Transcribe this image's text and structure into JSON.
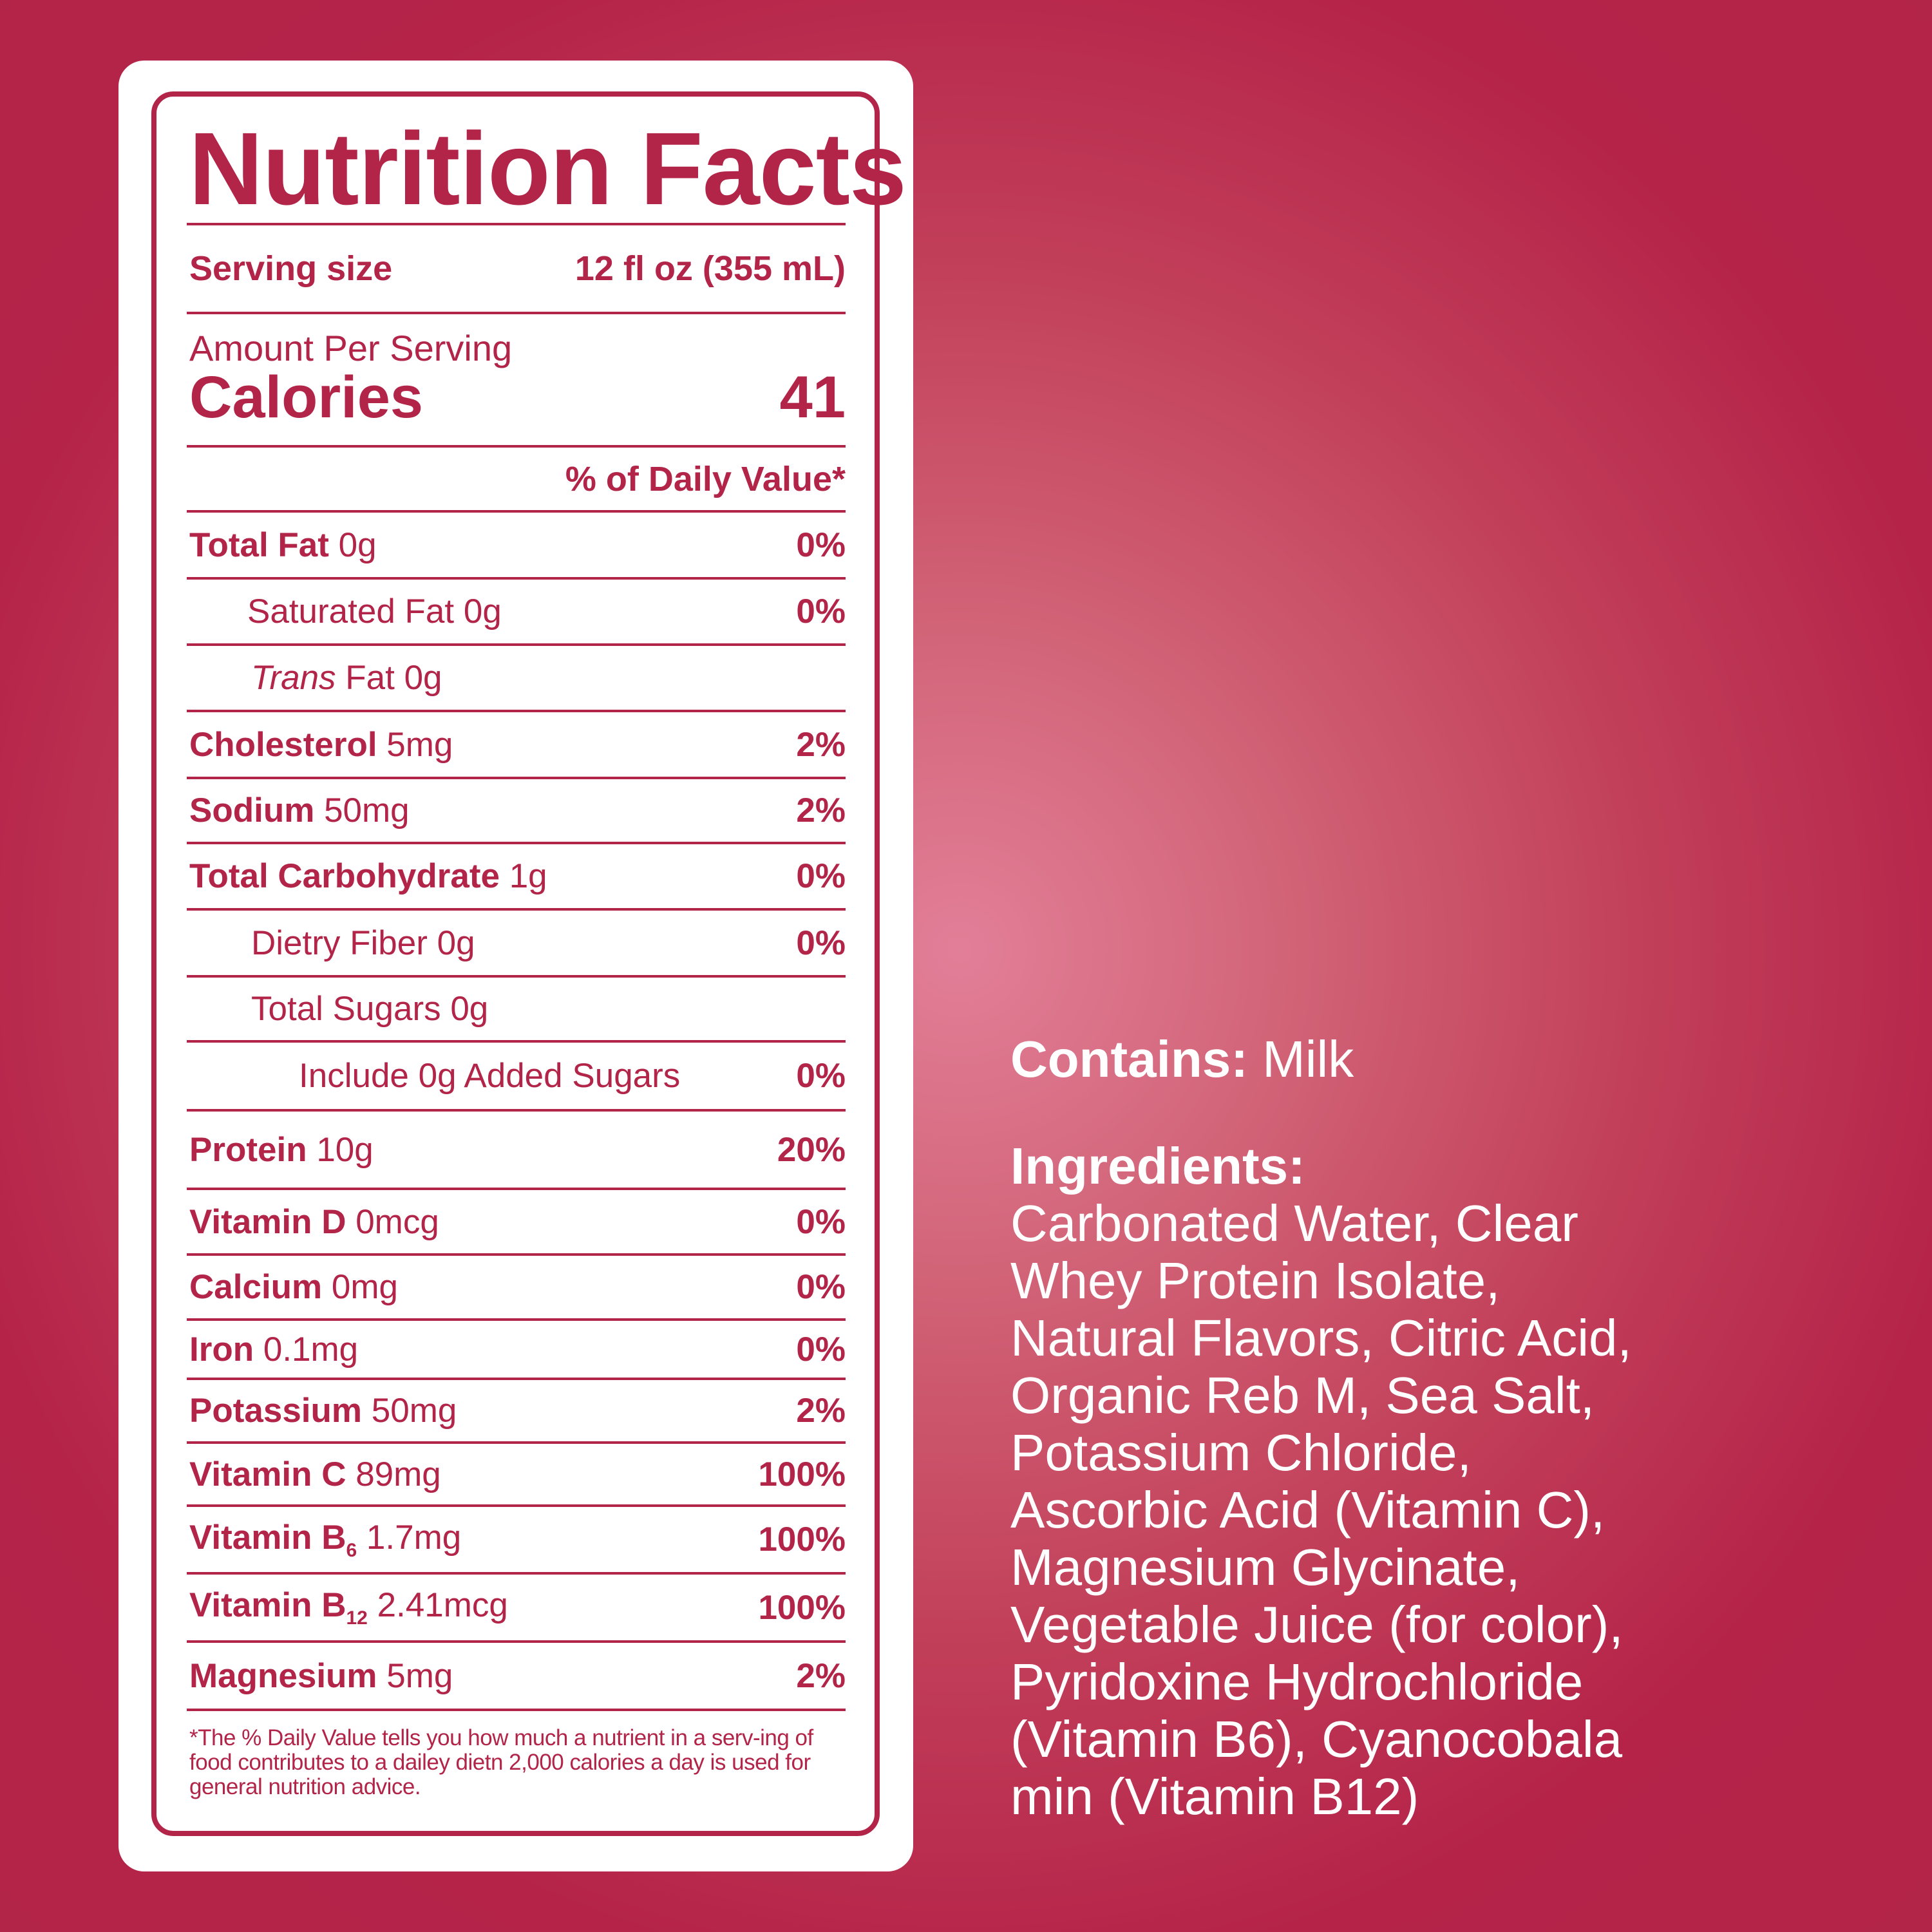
{
  "label": {
    "title": "Nutrition Facts",
    "serving_label": "Serving size",
    "serving_value": "12 fl oz (355 mL)",
    "amount_per_serving": "Amount Per Serving",
    "calories_label": "Calories",
    "calories_value": "41",
    "dv_header": "% of Daily Value*",
    "nutrients": [
      {
        "name": "Total Fat",
        "amount": "0g",
        "dv": "0%"
      },
      {
        "name": "Saturated Fat 0g",
        "amount": "",
        "dv": "0%"
      },
      {
        "name": "Trans",
        "amount": "Fat 0g",
        "dv": ""
      },
      {
        "name": "Cholesterol",
        "amount": "5mg",
        "dv": "2%"
      },
      {
        "name": "Sodium",
        "amount": "50mg",
        "dv": "2%"
      },
      {
        "name": "Total Carbohydrate",
        "amount": "1g",
        "dv": "0%"
      },
      {
        "name": "Dietry Fiber 0g",
        "amount": "",
        "dv": "0%"
      },
      {
        "name": "Total Sugars 0g",
        "amount": "",
        "dv": ""
      },
      {
        "name": "Include 0g Added Sugars",
        "amount": "",
        "dv": "0%"
      },
      {
        "name": "Protein",
        "amount": "10g",
        "dv": "20%"
      },
      {
        "name": "Vitamin D",
        "amount": "0mcg",
        "dv": "0%"
      },
      {
        "name": "Calcium",
        "amount": "0mg",
        "dv": "0%"
      },
      {
        "name": "Iron",
        "amount": "0.1mg",
        "dv": "0%"
      },
      {
        "name": "Potassium",
        "amount": "50mg",
        "dv": "2%"
      },
      {
        "name": "Vitamin C",
        "amount": "89mg",
        "dv": "100%"
      },
      {
        "name": "Vitamin B",
        "sub": "6",
        "amount": "1.7mg",
        "dv": "100%"
      },
      {
        "name": "Vitamin B",
        "sub": "12",
        "amount": "2.41mcg",
        "dv": "100%"
      },
      {
        "name": "Magnesium",
        "amount": "5mg",
        "dv": "2%"
      }
    ],
    "footnote": "*The % Daily Value tells you how much a nutrient in a serv-ing of food contributes to a dailey dietn 2,000 calories a day is used for general nutrition advice."
  },
  "contains": {
    "label": "Contains:",
    "value": " Milk"
  },
  "ingredients": {
    "label": "Ingredients:",
    "lines": [
      "Carbonated Water, Clear",
      "Whey Protein Isolate,",
      "Natural Flavors, Citric Acid,",
      "Organic Reb M, Sea Salt,",
      "Potassium Chloride,",
      "Ascorbic Acid (Vitamin C),",
      "Magnesium Glycinate,",
      "Vegetable Juice (for color),",
      "Pyridoxine Hydrochloride",
      "(Vitamin B6), Cyanocobala",
      "min (Vitamin B12)"
    ]
  },
  "colors": {
    "brand": "#b22448",
    "background_center": "#e27f98",
    "label_bg": "#ffffff"
  }
}
